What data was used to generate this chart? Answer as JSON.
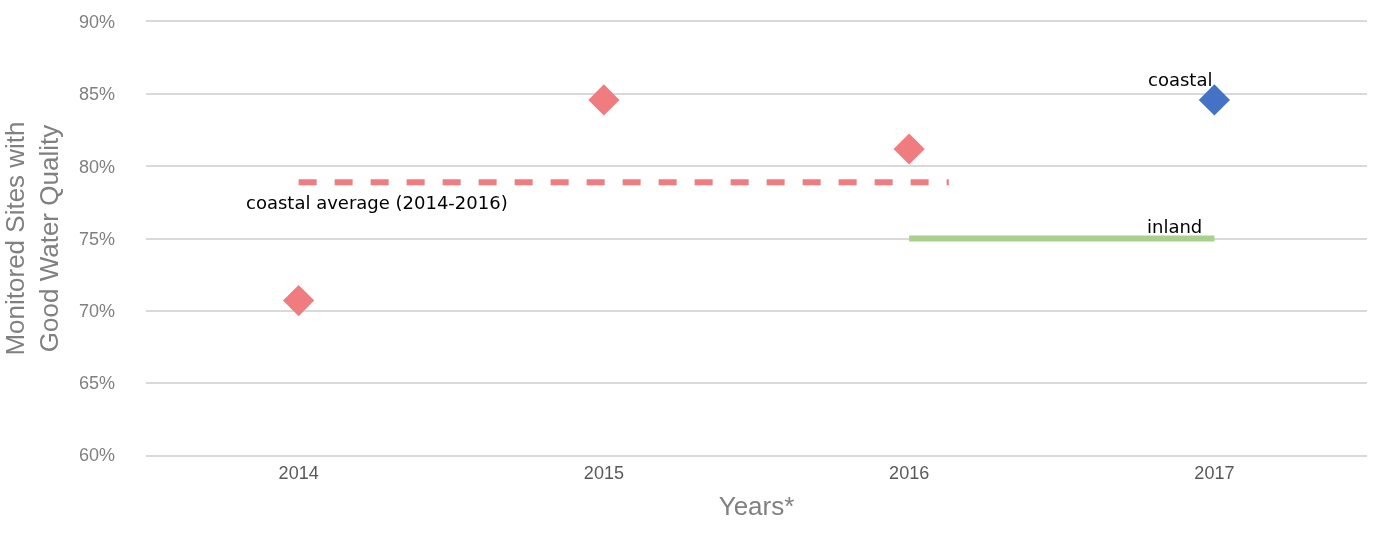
{
  "chart_data": {
    "type": "scatter",
    "xlabel": "Years*",
    "ylabel": "Monitored Sites with Good Water Quality",
    "xlim": [
      2013.5,
      2017.5
    ],
    "xticks": [
      2014,
      2015,
      2016,
      2017
    ],
    "ylim": [
      60,
      90
    ],
    "yticks": [
      {
        "value": 60,
        "label": "60%"
      },
      {
        "value": 65,
        "label": "65%"
      },
      {
        "value": 70,
        "label": "70%"
      },
      {
        "value": 75,
        "label": "75%"
      },
      {
        "value": 80,
        "label": "80%"
      },
      {
        "value": 85,
        "label": "85%"
      },
      {
        "value": 90,
        "label": "90%"
      }
    ],
    "grid": "y",
    "series": [
      {
        "marker": "diamond",
        "color": "#f07c80",
        "x": [
          2014,
          2015,
          2016
        ],
        "values": [
          70.7,
          84.6,
          81.2
        ]
      },
      {
        "marker": "diamond",
        "name": "coastal",
        "color": "#4472c4",
        "x": [
          2017
        ],
        "values": [
          84.6
        ]
      },
      {
        "type": "line",
        "marker": "none",
        "line_style": "dashed",
        "name": "coastal average (2014-2016)",
        "color": "#f07c80",
        "x": [
          2014,
          2016.13
        ],
        "values": [
          78.9,
          78.9
        ]
      },
      {
        "type": "line",
        "marker": "none",
        "line_style": "solid",
        "name": "inland",
        "color": "#a9d18e",
        "x": [
          2016,
          2017
        ],
        "values": [
          75,
          75
        ]
      }
    ]
  }
}
